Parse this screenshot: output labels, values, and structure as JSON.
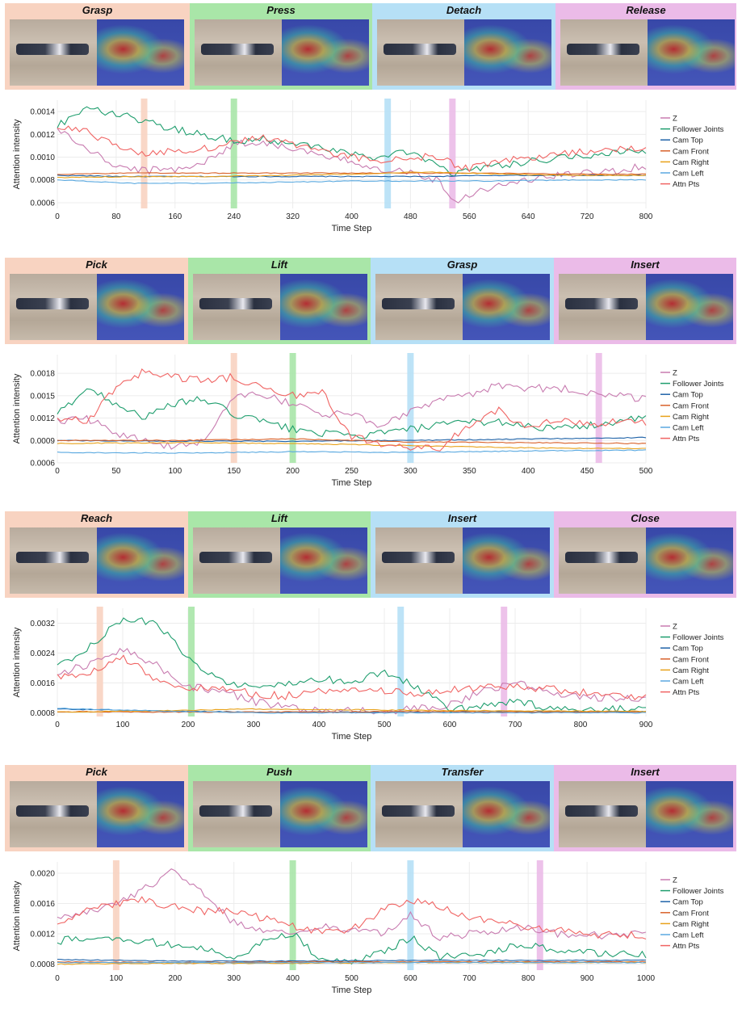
{
  "legend": [
    "Z",
    "Follower Joints",
    "Cam Top",
    "Cam Front",
    "Cam Right",
    "Cam Left",
    "Attn Pts"
  ],
  "colors": {
    "z": "#c87bb0",
    "follower": "#1f9e6e",
    "camtop": "#1f63a8",
    "camfront": "#d9622b",
    "camright": "#e8a21a",
    "camleft": "#5aa9e0",
    "attn": "#f06463",
    "phase1": "#f8d3c1",
    "phase2": "#a9e6a8",
    "phase3": "#b6e0f6",
    "phase4": "#ebbbe8"
  },
  "ylabel": "Attention intensity",
  "xlabel": "Time Step",
  "chart_data": [
    {
      "type": "line",
      "phases": [
        "Grasp",
        "Press",
        "Detach",
        "Release"
      ],
      "highlights": [
        118,
        240,
        449,
        537
      ],
      "xlim": [
        0,
        800
      ],
      "ylim": [
        0.00055,
        0.0015
      ],
      "xticks": [
        "0",
        "80",
        "160",
        "240",
        "320",
        "400",
        "480",
        "560",
        "640",
        "720",
        "800"
      ],
      "yticks": [
        "0.0006",
        "0.0008",
        "0.0010",
        "0.0012",
        "0.0014"
      ],
      "series": [
        {
          "name": "Z",
          "x": [
            0,
            40,
            80,
            120,
            160,
            200,
            240,
            280,
            320,
            360,
            400,
            440,
            480,
            520,
            540,
            560,
            600,
            640,
            680,
            720,
            760,
            800
          ],
          "values": [
            0.00125,
            0.00107,
            0.00092,
            0.00088,
            0.0009,
            0.00095,
            0.00112,
            0.00113,
            0.00108,
            0.001,
            0.00096,
            0.0009,
            0.00087,
            0.00079,
            0.0006,
            0.00068,
            0.00075,
            0.0008,
            0.00084,
            0.00086,
            0.00088,
            0.00092
          ]
        },
        {
          "name": "Follower Joints",
          "x": [
            0,
            40,
            80,
            120,
            160,
            200,
            240,
            280,
            320,
            360,
            400,
            440,
            480,
            520,
            540,
            560,
            600,
            640,
            680,
            720,
            760,
            800
          ],
          "values": [
            0.00128,
            0.00143,
            0.00138,
            0.00132,
            0.00124,
            0.0012,
            0.00114,
            0.00116,
            0.00112,
            0.00108,
            0.00104,
            0.00099,
            0.00105,
            0.00093,
            0.00085,
            0.0009,
            0.00093,
            0.00096,
            0.00099,
            0.00102,
            0.00104,
            0.00106
          ]
        },
        {
          "name": "Cam Top",
          "x": [
            0,
            100,
            200,
            300,
            400,
            500,
            600,
            700,
            800
          ],
          "values": [
            0.00084,
            0.00083,
            0.00083,
            0.00083,
            0.00083,
            0.00083,
            0.00084,
            0.00084,
            0.00084
          ]
        },
        {
          "name": "Cam Front",
          "x": [
            0,
            100,
            200,
            300,
            400,
            500,
            600,
            700,
            800
          ],
          "values": [
            0.00085,
            0.00086,
            0.00086,
            0.00086,
            0.00086,
            0.00086,
            0.00086,
            0.00085,
            0.00085
          ]
        },
        {
          "name": "Cam Right",
          "x": [
            0,
            100,
            200,
            300,
            400,
            500,
            600,
            700,
            800
          ],
          "values": [
            0.00082,
            0.00083,
            0.00083,
            0.00084,
            0.00085,
            0.00087,
            0.00085,
            0.00084,
            0.00084
          ]
        },
        {
          "name": "Cam Left",
          "x": [
            0,
            100,
            200,
            300,
            400,
            500,
            600,
            700,
            800
          ],
          "values": [
            0.0008,
            0.00077,
            0.00077,
            0.00078,
            0.00079,
            0.00079,
            0.00079,
            0.0008,
            0.0008
          ]
        },
        {
          "name": "Attn Pts",
          "x": [
            0,
            40,
            80,
            120,
            160,
            200,
            240,
            280,
            320,
            360,
            400,
            440,
            480,
            520,
            540,
            560,
            600,
            640,
            680,
            720,
            760,
            800
          ],
          "values": [
            0.00128,
            0.00122,
            0.0011,
            0.00103,
            0.00105,
            0.00108,
            0.00112,
            0.00118,
            0.00112,
            0.00105,
            0.001,
            0.00096,
            0.001,
            0.00101,
            0.00092,
            0.0009,
            0.00096,
            0.001,
            0.00103,
            0.00105,
            0.00107,
            0.00108
          ]
        }
      ]
    },
    {
      "type": "line",
      "phases": [
        "Pick",
        "Lift",
        "Grasp",
        "Insert"
      ],
      "highlights": [
        150,
        200,
        300,
        460
      ],
      "xlim": [
        0,
        500
      ],
      "ylim": [
        0.0006,
        0.00205
      ],
      "xticks": [
        "0",
        "50",
        "100",
        "150",
        "200",
        "250",
        "300",
        "350",
        "400",
        "450",
        "500"
      ],
      "yticks": [
        "0.0006",
        "0.0009",
        "0.0012",
        "0.0015",
        "0.0018"
      ],
      "series": [
        {
          "name": "Z",
          "x": [
            0,
            25,
            50,
            75,
            100,
            125,
            150,
            175,
            200,
            225,
            250,
            275,
            300,
            325,
            350,
            375,
            400,
            425,
            450,
            475,
            500
          ],
          "values": [
            0.00115,
            0.0012,
            0.001,
            0.0009,
            0.0008,
            0.0009,
            0.0015,
            0.0015,
            0.0014,
            0.00125,
            0.00125,
            0.0011,
            0.0013,
            0.00145,
            0.0015,
            0.00165,
            0.0016,
            0.0016,
            0.00155,
            0.0015,
            0.00145
          ]
        },
        {
          "name": "Follower Joints",
          "x": [
            0,
            25,
            50,
            75,
            100,
            125,
            150,
            175,
            200,
            225,
            250,
            275,
            300,
            325,
            350,
            375,
            400,
            425,
            450,
            475,
            500
          ],
          "values": [
            0.00125,
            0.0016,
            0.0014,
            0.0012,
            0.0014,
            0.00145,
            0.00125,
            0.00115,
            0.00105,
            0.001,
            0.00095,
            0.001,
            0.00105,
            0.0011,
            0.00115,
            0.00115,
            0.0011,
            0.00105,
            0.0011,
            0.00115,
            0.0012
          ]
        },
        {
          "name": "Cam Top",
          "x": [
            0,
            100,
            200,
            300,
            400,
            500
          ],
          "values": [
            0.0009,
            0.00089,
            0.00089,
            0.0009,
            0.00092,
            0.00094
          ]
        },
        {
          "name": "Cam Front",
          "x": [
            0,
            100,
            200,
            300,
            400,
            500
          ],
          "values": [
            0.0009,
            0.0009,
            0.00092,
            0.00088,
            0.00087,
            0.00086
          ]
        },
        {
          "name": "Cam Right",
          "x": [
            0,
            100,
            200,
            300,
            400,
            500
          ],
          "values": [
            0.00086,
            0.00087,
            0.00086,
            0.00083,
            0.0008,
            0.00079
          ]
        },
        {
          "name": "Cam Left",
          "x": [
            0,
            100,
            200,
            300,
            400,
            500
          ],
          "values": [
            0.00074,
            0.00073,
            0.00075,
            0.00074,
            0.00076,
            0.00077
          ]
        },
        {
          "name": "Attn Pts",
          "x": [
            0,
            25,
            50,
            75,
            100,
            125,
            150,
            175,
            200,
            225,
            250,
            275,
            300,
            325,
            350,
            375,
            400,
            425,
            450,
            475,
            500
          ],
          "values": [
            0.0012,
            0.00115,
            0.0016,
            0.00185,
            0.00175,
            0.0017,
            0.00175,
            0.0016,
            0.0015,
            0.00155,
            0.00095,
            0.00085,
            0.0008,
            0.0008,
            0.0011,
            0.0013,
            0.00105,
            0.0012,
            0.0011,
            0.00115,
            0.00115
          ]
        }
      ]
    },
    {
      "type": "line",
      "phases": [
        "Reach",
        "Lift",
        "Insert",
        "Close"
      ],
      "highlights": [
        65,
        205,
        525,
        683
      ],
      "xlim": [
        0,
        900
      ],
      "ylim": [
        0.0007,
        0.0036
      ],
      "xticks": [
        "0",
        "100",
        "200",
        "300",
        "400",
        "500",
        "600",
        "700",
        "800",
        "900"
      ],
      "yticks": [
        "0.0008",
        "0.0016",
        "0.0024",
        "0.0032"
      ],
      "series": [
        {
          "name": "Z",
          "x": [
            0,
            50,
            100,
            150,
            200,
            250,
            300,
            350,
            400,
            450,
            500,
            550,
            600,
            650,
            700,
            750,
            800,
            850,
            900
          ],
          "values": [
            0.00185,
            0.0021,
            0.0025,
            0.0021,
            0.0015,
            0.0014,
            0.0011,
            0.00095,
            0.00085,
            0.00085,
            0.00085,
            0.0009,
            0.001,
            0.0014,
            0.0016,
            0.0014,
            0.0012,
            0.0012,
            0.0012
          ]
        },
        {
          "name": "Follower Joints",
          "x": [
            0,
            50,
            100,
            150,
            200,
            250,
            300,
            350,
            400,
            450,
            500,
            550,
            600,
            650,
            700,
            750,
            800,
            850,
            900
          ],
          "values": [
            0.002,
            0.0026,
            0.0033,
            0.0032,
            0.0023,
            0.00165,
            0.0015,
            0.00155,
            0.0017,
            0.00165,
            0.0019,
            0.0015,
            0.00085,
            0.001,
            0.0011,
            0.00095,
            0.0009,
            0.0009,
            0.0009
          ]
        },
        {
          "name": "Cam Top",
          "x": [
            0,
            150,
            300,
            450,
            600,
            750,
            900
          ],
          "values": [
            0.0009,
            0.00085,
            0.00082,
            0.00082,
            0.00083,
            0.00083,
            0.00083
          ]
        },
        {
          "name": "Cam Front",
          "x": [
            0,
            150,
            300,
            450,
            600,
            750,
            900
          ],
          "values": [
            0.00083,
            0.00082,
            0.00082,
            0.00083,
            0.00083,
            0.00082,
            0.00082
          ]
        },
        {
          "name": "Cam Right",
          "x": [
            0,
            150,
            300,
            450,
            600,
            750,
            900
          ],
          "values": [
            0.00082,
            0.00085,
            0.0009,
            0.00088,
            0.00086,
            0.00085,
            0.00084
          ]
        },
        {
          "name": "Cam Left",
          "x": [
            0,
            150,
            300,
            450,
            600,
            750,
            900
          ],
          "values": [
            0.00092,
            0.00085,
            0.0008,
            0.0008,
            0.0008,
            0.0008,
            0.0008
          ]
        },
        {
          "name": "Attn Pts",
          "x": [
            0,
            50,
            100,
            150,
            200,
            250,
            300,
            350,
            400,
            450,
            500,
            550,
            600,
            650,
            700,
            750,
            800,
            850,
            900
          ],
          "values": [
            0.00175,
            0.0019,
            0.0023,
            0.0017,
            0.00145,
            0.0015,
            0.0013,
            0.00125,
            0.0014,
            0.00145,
            0.0014,
            0.0013,
            0.0014,
            0.0015,
            0.0015,
            0.00145,
            0.00135,
            0.00125,
            0.0012
          ]
        }
      ]
    },
    {
      "type": "line",
      "phases": [
        "Pick",
        "Push",
        "Transfer",
        "Insert"
      ],
      "highlights": [
        100,
        400,
        600,
        820
      ],
      "xlim": [
        0,
        1000
      ],
      "ylim": [
        0.00072,
        0.00215
      ],
      "xticks": [
        "0",
        "100",
        "200",
        "300",
        "400",
        "500",
        "600",
        "700",
        "800",
        "900",
        "1000"
      ],
      "yticks": [
        "0.0008",
        "0.0012",
        "0.0016",
        "0.0020"
      ],
      "series": [
        {
          "name": "Z",
          "x": [
            0,
            50,
            100,
            150,
            200,
            250,
            300,
            350,
            400,
            450,
            500,
            550,
            600,
            650,
            700,
            750,
            800,
            850,
            900,
            950,
            1000
          ],
          "values": [
            0.0014,
            0.0015,
            0.0016,
            0.0018,
            0.00205,
            0.0017,
            0.00135,
            0.00125,
            0.0012,
            0.0013,
            0.00125,
            0.0012,
            0.00145,
            0.00115,
            0.0012,
            0.00125,
            0.0013,
            0.0012,
            0.00118,
            0.00118,
            0.0012
          ]
        },
        {
          "name": "Follower Joints",
          "x": [
            0,
            50,
            100,
            150,
            200,
            250,
            300,
            350,
            400,
            450,
            500,
            550,
            600,
            650,
            700,
            750,
            800,
            850,
            900,
            950,
            1000
          ],
          "values": [
            0.0011,
            0.00115,
            0.0011,
            0.0011,
            0.00105,
            0.001,
            0.00088,
            0.0011,
            0.0012,
            0.00085,
            0.00083,
            0.00095,
            0.00115,
            0.0009,
            0.0009,
            0.001,
            0.00105,
            0.00098,
            0.00095,
            0.00093,
            0.00092
          ]
        },
        {
          "name": "Cam Top",
          "x": [
            0,
            200,
            400,
            600,
            800,
            1000
          ],
          "values": [
            0.00086,
            0.00084,
            0.00084,
            0.00085,
            0.00085,
            0.00085
          ]
        },
        {
          "name": "Cam Front",
          "x": [
            0,
            200,
            400,
            600,
            800,
            1000
          ],
          "values": [
            0.00083,
            0.00082,
            0.00083,
            0.00083,
            0.00083,
            0.00083
          ]
        },
        {
          "name": "Cam Right",
          "x": [
            0,
            200,
            400,
            600,
            800,
            1000
          ],
          "values": [
            0.0008,
            0.00081,
            0.00081,
            0.00082,
            0.00082,
            0.00082
          ]
        },
        {
          "name": "Cam Left",
          "x": [
            0,
            200,
            400,
            600,
            800,
            1000
          ],
          "values": [
            0.00082,
            0.00082,
            0.00082,
            0.00082,
            0.00082,
            0.00082
          ]
        },
        {
          "name": "Attn Pts",
          "x": [
            0,
            50,
            100,
            150,
            200,
            250,
            300,
            350,
            400,
            450,
            500,
            550,
            600,
            650,
            700,
            750,
            800,
            850,
            900,
            950,
            1000
          ],
          "values": [
            0.00135,
            0.0015,
            0.0016,
            0.00165,
            0.00155,
            0.0015,
            0.0015,
            0.0014,
            0.0013,
            0.0012,
            0.00125,
            0.0015,
            0.00165,
            0.00155,
            0.0014,
            0.00135,
            0.0013,
            0.00125,
            0.0012,
            0.00118,
            0.00118
          ]
        }
      ]
    }
  ]
}
